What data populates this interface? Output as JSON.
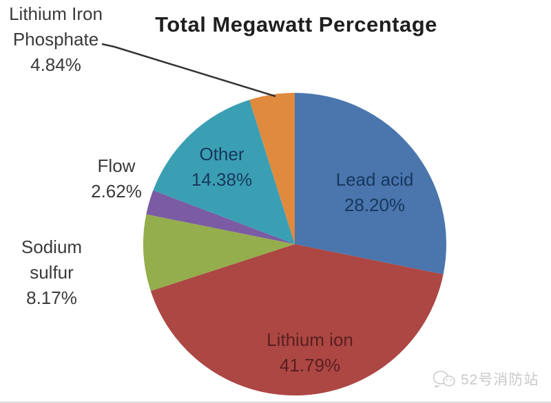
{
  "title": "Total Megawatt Percentage",
  "watermark": {
    "text": "52号消防站",
    "icon": "wechat-chat-bubbles-icon"
  },
  "chart_data": {
    "type": "pie",
    "title": "Total Megawatt Percentage",
    "start_angle_deg": 0,
    "direction": "clockwise",
    "legend": "none",
    "label_style": "category-name-and-percentage",
    "slices": [
      {
        "label": "Lead acid",
        "value": 28.2,
        "display": "28.20%",
        "color": "#4a76ad",
        "label_color": "#17375e",
        "label_placement": "inside"
      },
      {
        "label": "Lithium ion",
        "value": 41.79,
        "display": "41.79%",
        "color": "#ac4744",
        "label_color": "#5a1f1e",
        "label_placement": "inside"
      },
      {
        "label": "Sodium sulfur",
        "value": 8.17,
        "display": "8.17%",
        "color": "#94ae4d",
        "label_color": "#3a3a3a",
        "label_placement": "outside"
      },
      {
        "label": "Flow",
        "value": 2.62,
        "display": "2.62%",
        "color": "#7a5ba4",
        "label_color": "#3a3a3a",
        "label_placement": "outside"
      },
      {
        "label": "Other",
        "value": 14.38,
        "display": "14.38%",
        "color": "#3b9fb4",
        "label_color": "#17375e",
        "label_placement": "inside"
      },
      {
        "label": "Lithium Iron Phosphate",
        "value": 4.84,
        "display": "4.84%",
        "color": "#df8a3d",
        "label_color": "#3a3a3a",
        "label_placement": "outside-callout"
      }
    ]
  }
}
